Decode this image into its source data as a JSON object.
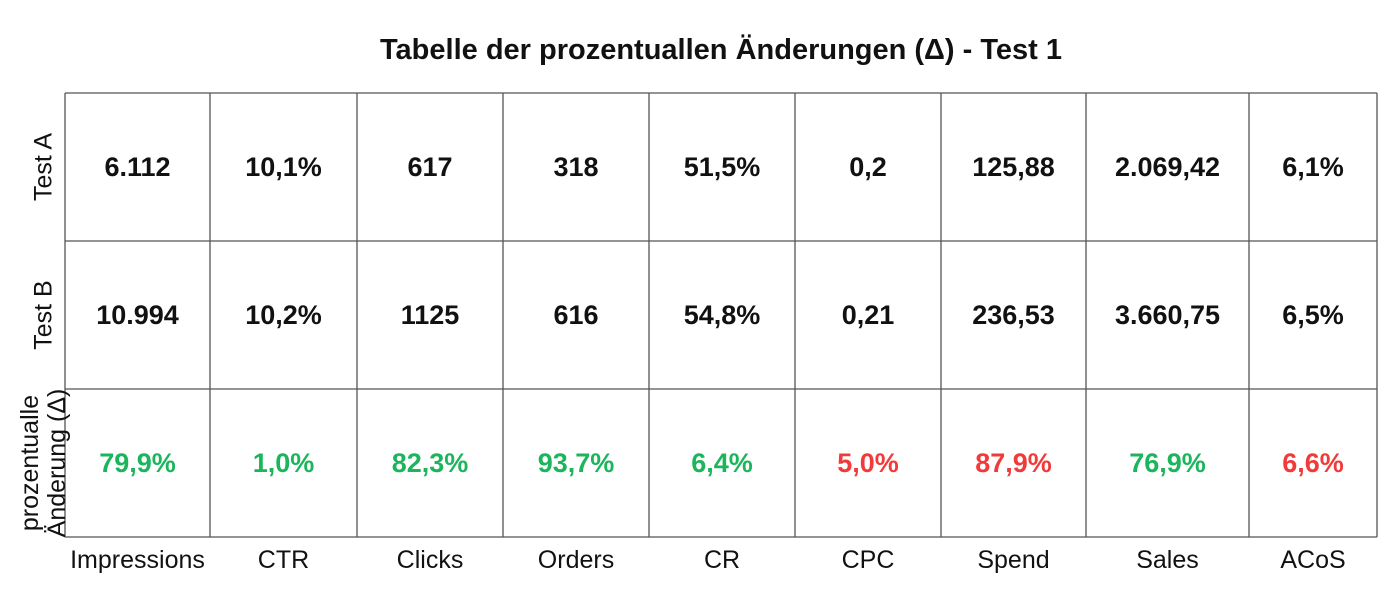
{
  "chart_data": {
    "type": "table",
    "title": "Tabelle der prozentuallen Änderungen (Δ) - Test 1",
    "columns": [
      "Impressions",
      "CTR",
      "Clicks",
      "Orders",
      "CR",
      "CPC",
      "Spend",
      "Sales",
      "ACoS"
    ],
    "rows": [
      {
        "label": [
          "Test A"
        ],
        "values": [
          "6.112",
          "10,1%",
          "617",
          "318",
          "51,5%",
          "0,2",
          "125,88",
          "2.069,42",
          "6,1%"
        ]
      },
      {
        "label": [
          "Test B"
        ],
        "values": [
          "10.994",
          "10,2%",
          "1125",
          "616",
          "54,8%",
          "0,21",
          "236,53",
          "3.660,75",
          "6,5%"
        ]
      },
      {
        "label": [
          "prozentualle",
          "Änderung (Δ)"
        ],
        "values": [
          "79,9%",
          "1,0%",
          "82,3%",
          "93,7%",
          "6,4%",
          "5,0%",
          "87,9%",
          "76,9%",
          "6,6%"
        ],
        "value_colors": [
          "green",
          "green",
          "green",
          "green",
          "green",
          "red",
          "red",
          "green",
          "red"
        ]
      }
    ],
    "colors": {
      "green": "#1bb55c",
      "red": "#f23a3a",
      "text": "#111111",
      "grid": "#555555"
    }
  }
}
